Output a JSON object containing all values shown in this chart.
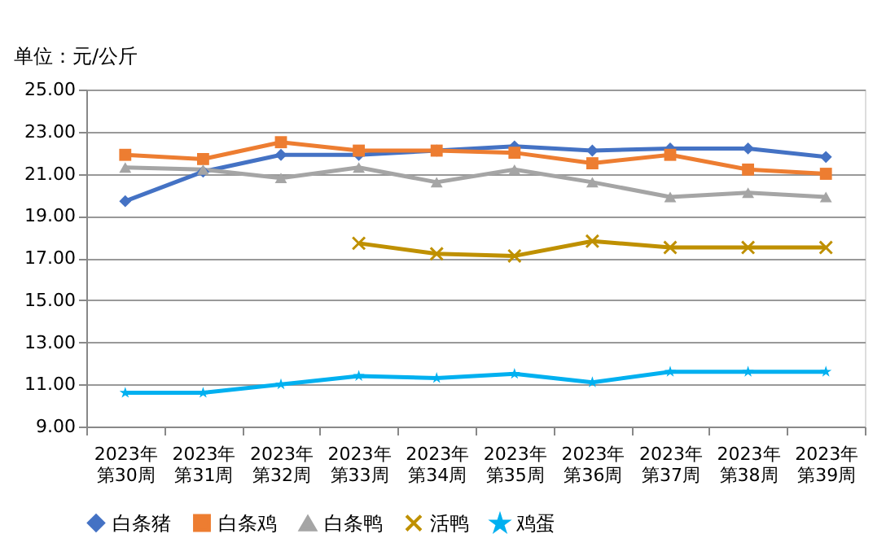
{
  "chart_data": {
    "type": "line",
    "ylabel": "单位：元/公斤",
    "categories": [
      "2023年第30周",
      "2023年第31周",
      "2023年第32周",
      "2023年第33周",
      "2023年第34周",
      "2023年第35周",
      "2023年第36周",
      "2023年第37周",
      "2023年第38周",
      "2023年第39周"
    ],
    "series": [
      {
        "name": "白条猪",
        "color": "#4472c4",
        "marker": "diamond",
        "values": [
          19.7,
          21.1,
          21.9,
          21.9,
          22.1,
          22.3,
          22.1,
          22.2,
          22.2,
          21.8
        ]
      },
      {
        "name": "白条鸡",
        "color": "#ed7d31",
        "marker": "square",
        "values": [
          21.9,
          21.7,
          22.5,
          22.1,
          22.1,
          22.0,
          21.5,
          21.9,
          21.2,
          21.0
        ]
      },
      {
        "name": "白条鸭",
        "color": "#a5a5a5",
        "marker": "triangle",
        "values": [
          21.3,
          21.2,
          20.8,
          21.3,
          20.6,
          21.2,
          20.6,
          19.9,
          20.1,
          19.9
        ]
      },
      {
        "name": "活鸭",
        "color": "#bf9000",
        "marker": "cross",
        "values": [
          null,
          null,
          null,
          17.7,
          17.2,
          17.1,
          17.8,
          17.5,
          17.5,
          17.5
        ]
      },
      {
        "name": "鸡蛋",
        "color": "#00b0f0",
        "marker": "star",
        "values": [
          10.6,
          10.6,
          11.0,
          11.4,
          11.3,
          11.5,
          11.1,
          11.6,
          11.6,
          11.6
        ]
      }
    ],
    "ylim": [
      9,
      25
    ],
    "yticks": [
      {
        "value": 9,
        "label": "9.00"
      },
      {
        "value": 11,
        "label": "11.00"
      },
      {
        "value": 13,
        "label": "13.00"
      },
      {
        "value": 15,
        "label": "15.00"
      },
      {
        "value": 17,
        "label": "17.00"
      },
      {
        "value": 19,
        "label": "19.00"
      },
      {
        "value": 21,
        "label": "21.00"
      },
      {
        "value": 23,
        "label": "23.00"
      },
      {
        "value": 25,
        "label": "25.00"
      }
    ],
    "grid": "y",
    "legend": "bottom",
    "line_style": "solid"
  }
}
